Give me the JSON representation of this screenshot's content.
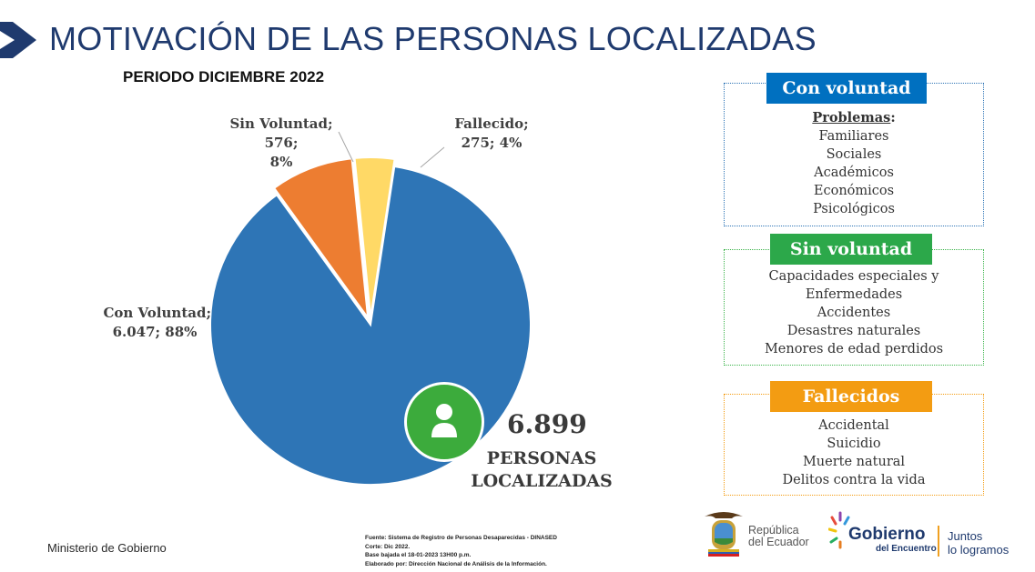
{
  "header": {
    "title": "MOTIVACIÓN DE LAS PERSONAS LOCALIZADAS",
    "subtitle": "PERIODO DICIEMBRE 2022"
  },
  "chart_data": {
    "type": "pie",
    "categories": [
      "Con Voluntad",
      "Sin Voluntad",
      "Fallecido"
    ],
    "values": [
      6047,
      576,
      275
    ],
    "percentages": [
      88,
      8,
      4
    ],
    "colors": [
      "#2e75b6",
      "#ed7d31",
      "#ffd966"
    ],
    "labels": [
      {
        "line1": "Con Voluntad;",
        "line2": "6.047; 88%"
      },
      {
        "line1": "Sin Voluntad; 576;",
        "line2": "8%"
      },
      {
        "line1": "Fallecido;",
        "line2": "275; 4%"
      }
    ]
  },
  "total": {
    "value": "6.899",
    "line1": "PERSONAS",
    "line2": "LOCALIZADAS",
    "icon": "person-icon"
  },
  "boxes": [
    {
      "title": "Con voluntad",
      "heading": "Problemas",
      "heading_suffix": ":",
      "items": [
        "Familiares",
        "Sociales",
        "Académicos",
        "Económicos",
        "Psicológicos"
      ],
      "color": "#0070c0"
    },
    {
      "title": "Sin voluntad",
      "items": [
        "Capacidades especiales y",
        "Enfermedades",
        "Accidentes",
        "Desastres naturales",
        "Menores de edad perdidos"
      ],
      "color": "#2ca84a"
    },
    {
      "title": "Fallecidos",
      "items": [
        "Accidental",
        "Suicidio",
        "Muerte natural",
        "Delitos contra la vida"
      ],
      "color": "#f39c12"
    }
  ],
  "footer": {
    "ministry": "Ministerio de Gobierno",
    "source": [
      "Fuente: Sistema de Registro de Personas Desaparecidas - DINASED",
      "Corte: Dic 2022.",
      "Base bajada el  18-01-2023 13H00 p.m.",
      "Elaborado por: Dirección Nacional de Análisis de la Información."
    ],
    "republica_line1": "República",
    "republica_line2": "del Ecuador",
    "gobierno": "Gobierno",
    "gobierno_sub": "del Encuentro",
    "juntos_line1": "Juntos",
    "juntos_line2": "lo logramos"
  }
}
